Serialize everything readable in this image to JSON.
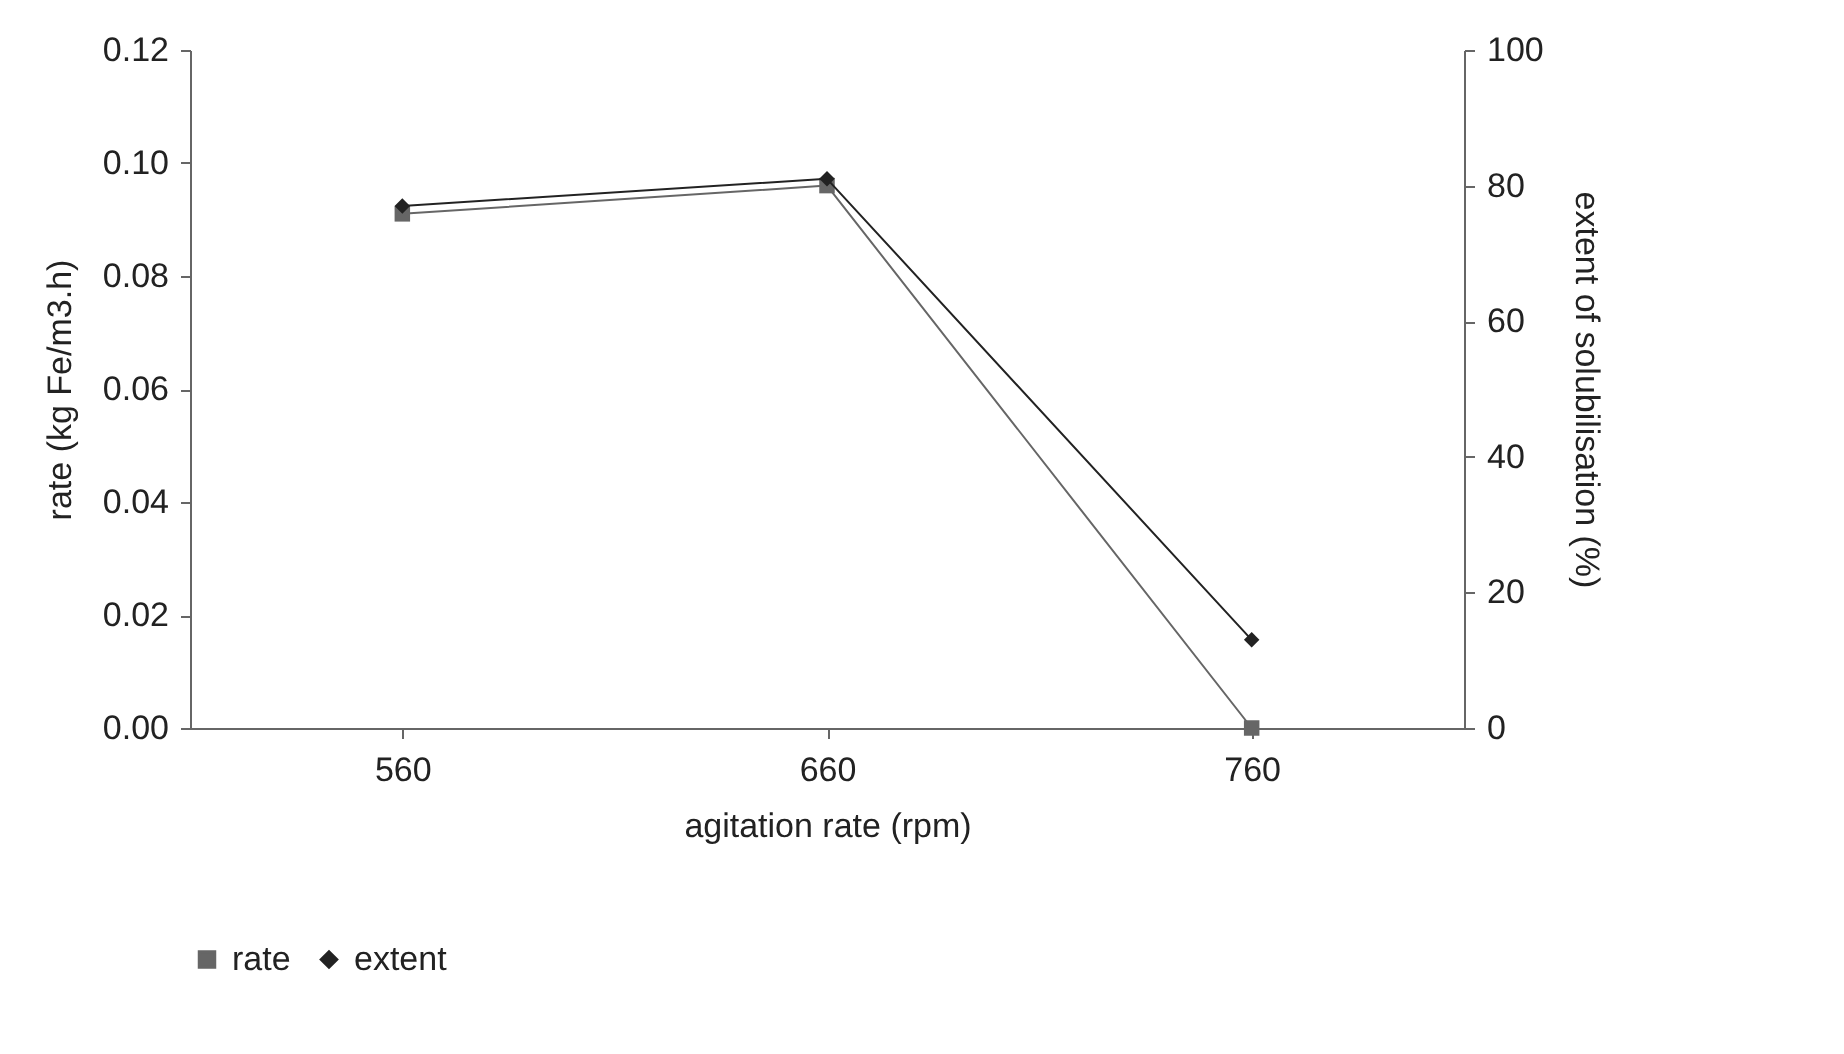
{
  "chart_data": {
    "type": "line",
    "xlabel": "agitation rate (rpm)",
    "ylabel": "rate (kg Fe/m3.h)",
    "y2label": "extent of solubilisation (%)",
    "categories": [
      "560",
      "660",
      "760"
    ],
    "series": [
      {
        "name": "rate",
        "color": "#666666",
        "marker": "square",
        "values": [
          0.091,
          0.096,
          0
        ]
      },
      {
        "name": "extent",
        "color": "#222222",
        "marker": "diamond",
        "axis": "y2",
        "values": [
          77,
          81,
          13
        ]
      }
    ],
    "ylim": [
      0,
      0.12
    ],
    "yticks": [
      {
        "value": 0,
        "label": "0.00"
      },
      {
        "value": 0.02,
        "label": "0.02"
      },
      {
        "value": 0.04,
        "label": "0.04"
      },
      {
        "value": 0.06,
        "label": "0.06"
      },
      {
        "value": 0.08,
        "label": "0.08"
      },
      {
        "value": 0.1,
        "label": "0.10"
      },
      {
        "value": 0.12,
        "label": "0.12"
      }
    ],
    "y2lim": [
      0,
      100
    ],
    "y2ticks": [
      0,
      20,
      40,
      60,
      80,
      100
    ],
    "legend": "bottom",
    "grid": false,
    "line_style": "solid"
  }
}
